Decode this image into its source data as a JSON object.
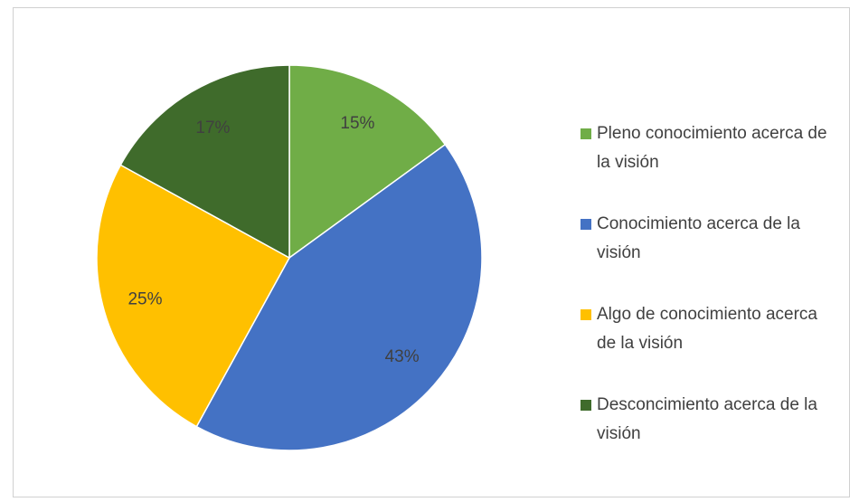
{
  "chart_data": {
    "type": "pie",
    "categories": [
      "Pleno conocimiento acerca de la visión",
      "Conocimiento acerca de la visión",
      "Algo de conocimiento acerca de la visión",
      "Desconcimiento acerca de la visión"
    ],
    "values": [
      15,
      43,
      25,
      17
    ],
    "value_labels": [
      "15%",
      "43%",
      "25%",
      "17%"
    ],
    "colors": [
      "#70ad47",
      "#4472c4",
      "#ffc000",
      "#3f6b2b"
    ],
    "legend": "right"
  }
}
